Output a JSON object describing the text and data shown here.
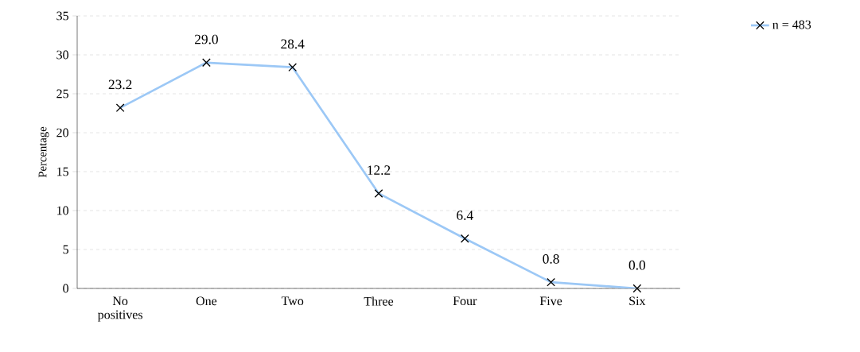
{
  "chart_data": {
    "type": "line",
    "ylabel": "Percentage",
    "categories": [
      "No positives",
      "One",
      "Two",
      "Three",
      "Four",
      "Five",
      "Six"
    ],
    "series": [
      {
        "name": "n = 483",
        "color": "#9cc8f6",
        "values": [
          23.2,
          29.0,
          28.4,
          12.2,
          6.4,
          0.8,
          0.0
        ],
        "value_labels": [
          "23.2",
          "29.0",
          "28.4",
          "12.2",
          "6.4",
          "0.8",
          "0.0"
        ]
      }
    ],
    "ylim": [
      0,
      35
    ],
    "yticks": [
      0,
      5,
      10,
      15,
      20,
      25,
      30,
      35
    ],
    "grid": "y",
    "legend": "top right",
    "marker": "cross",
    "line_style": "solid"
  }
}
